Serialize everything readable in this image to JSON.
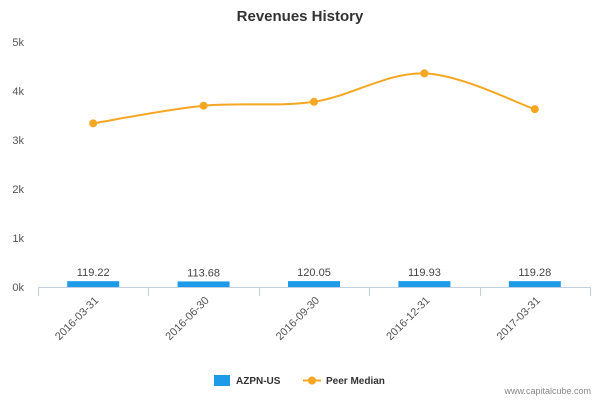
{
  "chart_data": {
    "type": "bar",
    "title": "Revenues History",
    "categories": [
      "2016-03-31",
      "2016-06-30",
      "2016-09-30",
      "2016-12-31",
      "2017-03-31"
    ],
    "series": [
      {
        "name": "AZPN-US",
        "type": "bar",
        "color": "#1e9be8",
        "values": [
          119.22,
          113.68,
          120.05,
          119.93,
          119.28
        ],
        "labels": [
          "119.22",
          "113.68",
          "120.05",
          "119.93",
          "119.28"
        ]
      },
      {
        "name": "Peer Median",
        "type": "line",
        "color": "#f5a623",
        "values": [
          3340,
          3700,
          3780,
          4360,
          3630
        ]
      }
    ],
    "ylim": [
      0,
      5000
    ],
    "yticks": [
      0,
      1000,
      2000,
      3000,
      4000,
      5000
    ],
    "ytick_labels": [
      "0k",
      "1k",
      "2k",
      "3k",
      "4k",
      "5k"
    ],
    "grid": false,
    "legend_position": "bottom"
  },
  "credit": "www.capitalcube.com"
}
